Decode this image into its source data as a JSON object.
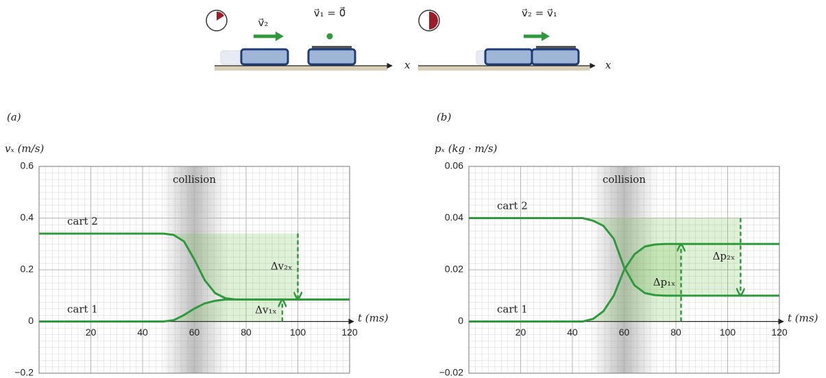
{
  "illustration": {
    "labels": [
      "v⃗₂",
      "v⃗₁ = 0⃗",
      "v⃗₂ = v⃗₁"
    ],
    "axis_labels": [
      "x",
      "x"
    ]
  },
  "chart_data": [
    {
      "type": "line",
      "panel_label": "(a)",
      "ylabel": "vₓ (m/s)",
      "xlabel": "t (ms)",
      "x": [
        0,
        48,
        52,
        56,
        60,
        64,
        68,
        72,
        76,
        120
      ],
      "series": [
        {
          "name": "cart 2",
          "color": "#2e9a3c",
          "values": [
            0.34,
            0.34,
            0.335,
            0.31,
            0.24,
            0.16,
            0.11,
            0.09,
            0.085,
            0.085
          ]
        },
        {
          "name": "cart 1",
          "color": "#2e9a3c",
          "values": [
            0,
            0,
            0.005,
            0.025,
            0.05,
            0.07,
            0.08,
            0.085,
            0.085,
            0.085
          ]
        }
      ],
      "xlim": [
        0,
        120
      ],
      "ylim": [
        -0.2,
        0.6
      ],
      "xticks": [
        20,
        40,
        60,
        80,
        100,
        120
      ],
      "yticks": [
        {
          "value": -0.2,
          "label": "−0.2"
        },
        0,
        0.2,
        0.4,
        0.6
      ],
      "grid": true,
      "shaded_region": {
        "label": "collision",
        "range": [
          47,
          73
        ]
      },
      "annotations": [
        {
          "label": "Δv₂ₓ",
          "x": 100,
          "y": [
            0.34,
            0.085
          ]
        },
        {
          "label": "Δv₁ₓ",
          "x": 94,
          "y": [
            0,
            0.085
          ]
        }
      ]
    },
    {
      "type": "line",
      "panel_label": "(b)",
      "ylabel": "pₓ (kg · m/s)",
      "xlabel": "t (ms)",
      "x": [
        0,
        44,
        48,
        52,
        56,
        60,
        64,
        68,
        72,
        76,
        120
      ],
      "series": [
        {
          "name": "cart 2",
          "color": "#2e9a3c",
          "values": [
            0.04,
            0.04,
            0.039,
            0.037,
            0.032,
            0.021,
            0.014,
            0.011,
            0.0102,
            0.01,
            0.01
          ]
        },
        {
          "name": "cart 1",
          "color": "#2e9a3c",
          "values": [
            0,
            0,
            0.001,
            0.004,
            0.01,
            0.02,
            0.026,
            0.029,
            0.0298,
            0.03,
            0.03
          ]
        }
      ],
      "xlim": [
        0,
        120
      ],
      "ylim": [
        -0.02,
        0.06
      ],
      "xticks": [
        20,
        40,
        60,
        80,
        100,
        120
      ],
      "yticks": [
        {
          "value": -0.02,
          "label": "−0.02"
        },
        0,
        0.02,
        0.04,
        0.06
      ],
      "grid": true,
      "shaded_region": {
        "label": "collision",
        "range": [
          47,
          73
        ]
      },
      "annotations": [
        {
          "label": "Δp₁ₓ",
          "x": 82,
          "y": [
            0,
            0.03
          ]
        },
        {
          "label": "Δp₂ₓ",
          "x": 105,
          "y": [
            0.04,
            0.01
          ]
        }
      ]
    }
  ]
}
